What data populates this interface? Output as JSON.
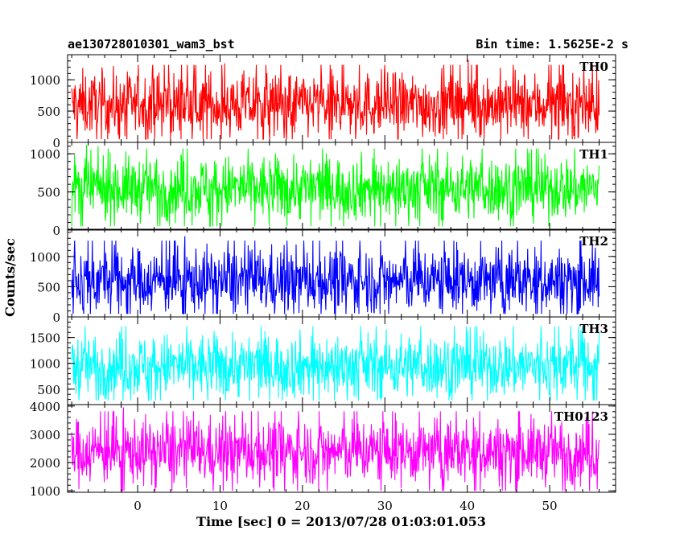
{
  "chart_data": {
    "type": "line",
    "title": "ae130728010301_wam3_bst",
    "bin_time_label": "Bin time: 1.5625E-2 s",
    "xlabel": "Time [sec] 0 = 2013/07/28 01:03:01.053",
    "ylabel": "Counts/sec",
    "xlim": [
      -8.5,
      58
    ],
    "data_x_range": [
      -8,
      56
    ],
    "xticks": [
      "0",
      "10",
      "20",
      "30",
      "40",
      "50"
    ],
    "xtick_values": [
      0,
      10,
      20,
      30,
      40,
      50
    ],
    "grid": false,
    "series": [
      {
        "name": "TH0",
        "color": "#ff0000",
        "ylim": [
          0,
          1400
        ],
        "yticks": [
          "0",
          "500",
          "1000"
        ],
        "ytick_values": [
          0,
          500,
          1000
        ],
        "mean": 600,
        "min": 50,
        "max": 1380
      },
      {
        "name": "TH1",
        "color": "#00ff00",
        "ylim": [
          0,
          1150
        ],
        "yticks": [
          "0",
          "500",
          "1000"
        ],
        "ytick_values": [
          0,
          500,
          1000
        ],
        "mean": 550,
        "min": 50,
        "max": 1130
      },
      {
        "name": "TH2",
        "color": "#0000ff",
        "ylim": [
          0,
          1450
        ],
        "yticks": [
          "0",
          "500",
          "1000"
        ],
        "ytick_values": [
          0,
          500,
          1000
        ],
        "mean": 600,
        "min": 50,
        "max": 1430
      },
      {
        "name": "TH3",
        "color": "#00ffff",
        "ylim": [
          200,
          1900
        ],
        "yticks": [
          "500",
          "1000",
          "1500"
        ],
        "ytick_values": [
          500,
          1000,
          1500
        ],
        "mean": 950,
        "min": 280,
        "max": 1880
      },
      {
        "name": "TH0123",
        "color": "#ff00ff",
        "ylim": [
          950,
          4050
        ],
        "yticks": [
          "1000",
          "2000",
          "3000",
          "4000"
        ],
        "ytick_values": [
          1000,
          2000,
          3000,
          4000
        ],
        "mean": 2400,
        "min": 1000,
        "max": 3950
      }
    ]
  }
}
